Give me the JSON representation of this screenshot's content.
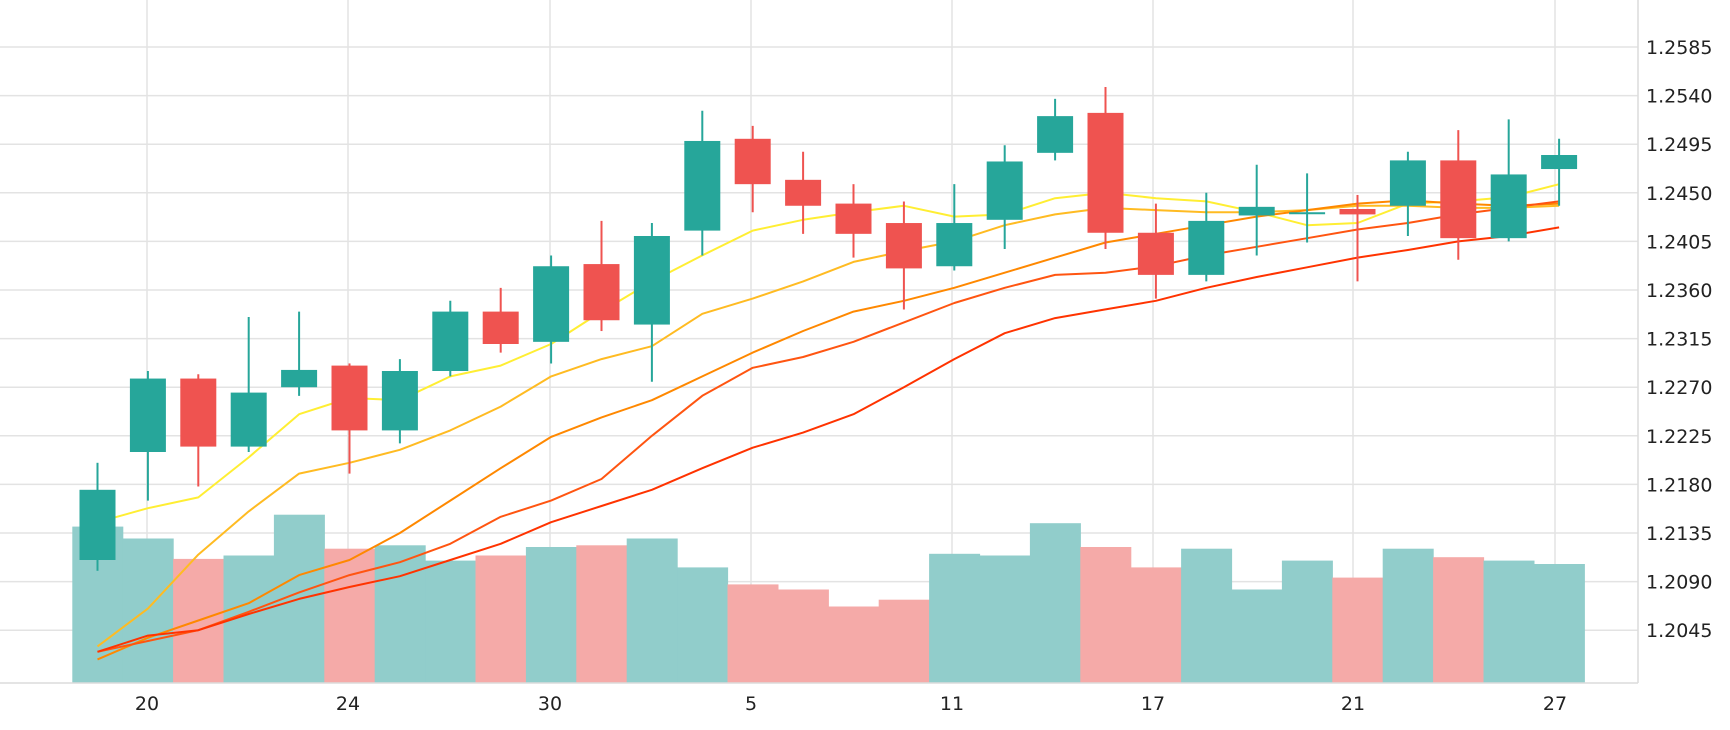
{
  "chart_data": {
    "type": "candlestick",
    "x_tick_labels": [
      "20",
      "24",
      "30",
      "5",
      "11",
      "17",
      "21",
      "27"
    ],
    "y_tick_labels": [
      "1.2585",
      "1.2540",
      "1.2495",
      "1.2450",
      "1.2405",
      "1.2360",
      "1.2315",
      "1.2270",
      "1.2225",
      "1.2180",
      "1.2135",
      "1.2090",
      "1.2045"
    ],
    "ylim": [
      1.2,
      1.262
    ],
    "grid": true,
    "colors": {
      "up": "#26a69a",
      "down": "#ef5350",
      "volume_up": "#91cdcb",
      "volume_down": "#f5aaa8"
    },
    "candles": [
      {
        "o": 1.211,
        "h": 1.22,
        "l": 1.21,
        "c": 1.2175
      },
      {
        "o": 1.221,
        "h": 1.2285,
        "l": 1.2165,
        "c": 1.2278
      },
      {
        "o": 1.2278,
        "h": 1.2282,
        "l": 1.2178,
        "c": 1.2215
      },
      {
        "o": 1.2215,
        "h": 1.2335,
        "l": 1.221,
        "c": 1.2265
      },
      {
        "o": 1.227,
        "h": 1.234,
        "l": 1.2262,
        "c": 1.2286
      },
      {
        "o": 1.229,
        "h": 1.2292,
        "l": 1.219,
        "c": 1.223
      },
      {
        "o": 1.223,
        "h": 1.2296,
        "l": 1.2218,
        "c": 1.2285
      },
      {
        "o": 1.2285,
        "h": 1.235,
        "l": 1.228,
        "c": 1.234
      },
      {
        "o": 1.234,
        "h": 1.2362,
        "l": 1.2302,
        "c": 1.231
      },
      {
        "o": 1.2312,
        "h": 1.2392,
        "l": 1.2292,
        "c": 1.2382
      },
      {
        "o": 1.2384,
        "h": 1.2424,
        "l": 1.2322,
        "c": 1.2332
      },
      {
        "o": 1.2328,
        "h": 1.2422,
        "l": 1.2275,
        "c": 1.241
      },
      {
        "o": 1.2415,
        "h": 1.2526,
        "l": 1.2392,
        "c": 1.2498
      },
      {
        "o": 1.25,
        "h": 1.2512,
        "l": 1.2432,
        "c": 1.2458
      },
      {
        "o": 1.2462,
        "h": 1.2488,
        "l": 1.2412,
        "c": 1.2438
      },
      {
        "o": 1.244,
        "h": 1.2458,
        "l": 1.239,
        "c": 1.2412
      },
      {
        "o": 1.2422,
        "h": 1.2442,
        "l": 1.2342,
        "c": 1.238
      },
      {
        "o": 1.2382,
        "h": 1.2458,
        "l": 1.2378,
        "c": 1.2422
      },
      {
        "o": 1.2425,
        "h": 1.2494,
        "l": 1.2398,
        "c": 1.2479
      },
      {
        "o": 1.2487,
        "h": 1.2537,
        "l": 1.248,
        "c": 1.2521
      },
      {
        "o": 1.2524,
        "h": 1.2548,
        "l": 1.2398,
        "c": 1.2413
      },
      {
        "o": 1.2413,
        "h": 1.244,
        "l": 1.2352,
        "c": 1.2374
      },
      {
        "o": 1.2374,
        "h": 1.245,
        "l": 1.2368,
        "c": 1.2424
      },
      {
        "o": 1.2429,
        "h": 1.2476,
        "l": 1.2392,
        "c": 1.2437
      },
      {
        "o": 1.2432,
        "h": 1.2468,
        "l": 1.2404,
        "c": 1.2432
      },
      {
        "o": 1.2435,
        "h": 1.2448,
        "l": 1.2368,
        "c": 1.243
      },
      {
        "o": 1.2438,
        "h": 1.2488,
        "l": 1.241,
        "c": 1.248
      },
      {
        "o": 1.248,
        "h": 1.2508,
        "l": 1.2388,
        "c": 1.2408
      },
      {
        "o": 1.2408,
        "h": 1.2518,
        "l": 1.2405,
        "c": 1.2467
      },
      {
        "o": 1.2472,
        "h": 1.25,
        "l": 1.2438,
        "c": 1.2485
      }
    ],
    "volume": {
      "max_scale": 1.0,
      "values": [
        0.92,
        0.85,
        0.73,
        0.75,
        0.99,
        0.79,
        0.81,
        0.72,
        0.75,
        0.8,
        0.81,
        0.85,
        0.68,
        0.58,
        0.55,
        0.45,
        0.49,
        0.76,
        0.75,
        0.94,
        0.8,
        0.68,
        0.79,
        0.55,
        0.72,
        0.62,
        0.79,
        0.74,
        0.72,
        0.7
      ],
      "directions": [
        "up",
        "up",
        "down",
        "up",
        "up",
        "down",
        "up",
        "up",
        "down",
        "up",
        "down",
        "up",
        "up",
        "down",
        "down",
        "down",
        "down",
        "up",
        "up",
        "up",
        "down",
        "down",
        "up",
        "up",
        "up",
        "down",
        "up",
        "down",
        "up",
        "up"
      ]
    },
    "moving_averages": [
      {
        "color": "#ffee33",
        "values": [
          1.2145,
          1.2158,
          1.2168,
          1.2205,
          1.2245,
          1.226,
          1.2258,
          1.228,
          1.229,
          1.231,
          1.234,
          1.2368,
          1.2392,
          1.2415,
          1.2425,
          1.2432,
          1.2438,
          1.2428,
          1.243,
          1.2445,
          1.245,
          1.2445,
          1.2442,
          1.2432,
          1.242,
          1.2422,
          1.244,
          1.2442,
          1.2446,
          1.2458
        ]
      },
      {
        "color": "#ffbb22",
        "values": [
          1.203,
          1.2065,
          1.2115,
          1.2155,
          1.219,
          1.22,
          1.2212,
          1.223,
          1.2252,
          1.228,
          1.2296,
          1.2308,
          1.2338,
          1.2352,
          1.2368,
          1.2386,
          1.2396,
          1.2405,
          1.242,
          1.243,
          1.2436,
          1.2434,
          1.2432,
          1.2432,
          1.2434,
          1.2438,
          1.2438,
          1.2436,
          1.2436,
          1.2438
        ]
      },
      {
        "color": "#ff8800",
        "values": [
          1.2018,
          1.2038,
          1.2054,
          1.207,
          1.2096,
          1.211,
          1.2135,
          1.2165,
          1.2195,
          1.2224,
          1.2242,
          1.2258,
          1.228,
          1.2302,
          1.2322,
          1.234,
          1.235,
          1.2362,
          1.2376,
          1.239,
          1.2404,
          1.2412,
          1.242,
          1.2428,
          1.2434,
          1.244,
          1.2443,
          1.244,
          1.2438,
          1.244
        ]
      },
      {
        "color": "#ff5511",
        "values": [
          1.2025,
          1.2035,
          1.2045,
          1.2062,
          1.208,
          1.2096,
          1.2108,
          1.2125,
          1.215,
          1.2165,
          1.2185,
          1.2225,
          1.2262,
          1.2288,
          1.2298,
          1.2312,
          1.233,
          1.2348,
          1.2362,
          1.2374,
          1.2376,
          1.2382,
          1.2392,
          1.24,
          1.2408,
          1.2416,
          1.2422,
          1.243,
          1.2436,
          1.2442
        ]
      },
      {
        "color": "#ff3300",
        "values": [
          1.2025,
          1.204,
          1.2045,
          1.206,
          1.2074,
          1.2085,
          1.2095,
          1.211,
          1.2125,
          1.2145,
          1.216,
          1.2175,
          1.2195,
          1.2214,
          1.2228,
          1.2245,
          1.227,
          1.2296,
          1.232,
          1.2334,
          1.2342,
          1.235,
          1.2362,
          1.2372,
          1.2381,
          1.239,
          1.2397,
          1.2405,
          1.241,
          1.2418
        ]
      }
    ]
  }
}
